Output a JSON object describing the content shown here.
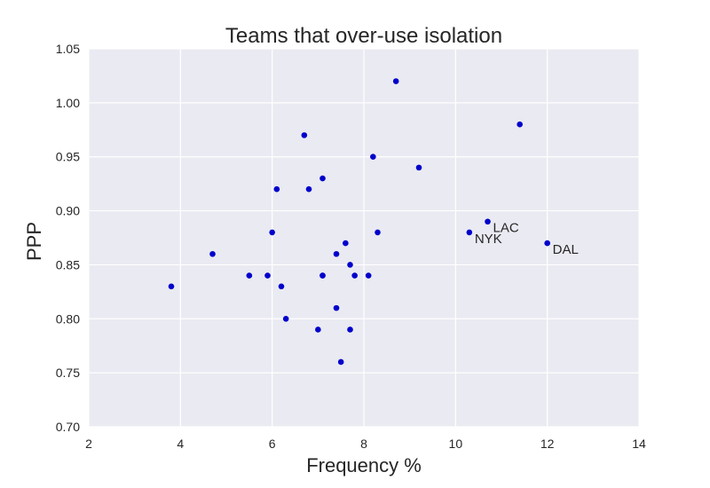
{
  "chart_data": {
    "type": "scatter",
    "title": "Teams that over-use isolation",
    "xlabel": "Frequency %",
    "ylabel": "PPP",
    "xlim": [
      2,
      14
    ],
    "ylim": [
      0.7,
      1.05
    ],
    "xticks": [
      "2",
      "4",
      "6",
      "8",
      "10",
      "12",
      "14"
    ],
    "yticks": [
      "0.70",
      "0.75",
      "0.80",
      "0.85",
      "0.90",
      "0.95",
      "1.00",
      "1.05"
    ],
    "grid": true,
    "background_color": "#eaeaf2",
    "point_color": "#0000cc",
    "points": [
      {
        "x": 3.8,
        "y": 0.83
      },
      {
        "x": 4.7,
        "y": 0.86
      },
      {
        "x": 5.5,
        "y": 0.84
      },
      {
        "x": 5.9,
        "y": 0.84
      },
      {
        "x": 6.0,
        "y": 0.88
      },
      {
        "x": 6.1,
        "y": 0.92
      },
      {
        "x": 6.2,
        "y": 0.83
      },
      {
        "x": 6.3,
        "y": 0.8
      },
      {
        "x": 6.7,
        "y": 0.97
      },
      {
        "x": 6.8,
        "y": 0.92
      },
      {
        "x": 7.0,
        "y": 0.79
      },
      {
        "x": 7.1,
        "y": 0.93
      },
      {
        "x": 7.1,
        "y": 0.84
      },
      {
        "x": 7.1,
        "y": 0.84
      },
      {
        "x": 7.4,
        "y": 0.86
      },
      {
        "x": 7.4,
        "y": 0.81
      },
      {
        "x": 7.5,
        "y": 0.76
      },
      {
        "x": 7.6,
        "y": 0.87
      },
      {
        "x": 7.7,
        "y": 0.85
      },
      {
        "x": 7.7,
        "y": 0.79
      },
      {
        "x": 7.8,
        "y": 0.84
      },
      {
        "x": 8.1,
        "y": 0.84
      },
      {
        "x": 8.2,
        "y": 0.95
      },
      {
        "x": 8.3,
        "y": 0.88
      },
      {
        "x": 8.7,
        "y": 1.02
      },
      {
        "x": 9.2,
        "y": 0.94
      },
      {
        "x": 10.3,
        "y": 0.88,
        "label": "NYK"
      },
      {
        "x": 10.7,
        "y": 0.89,
        "label": "LAC"
      },
      {
        "x": 11.4,
        "y": 0.98
      },
      {
        "x": 12.0,
        "y": 0.87,
        "label": "DAL"
      }
    ]
  }
}
